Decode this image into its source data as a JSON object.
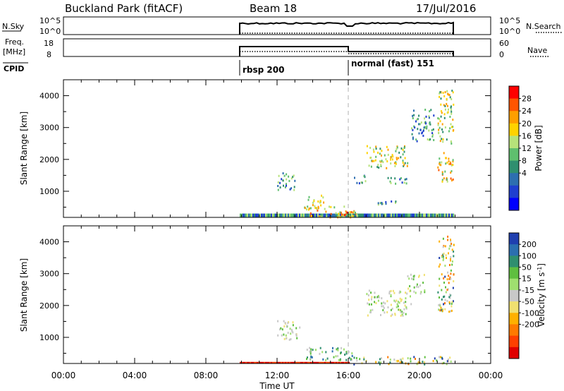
{
  "header": {
    "title": "Buckland Park (fitACF)",
    "beam": "Beam 18",
    "date": "17/Jul/2016"
  },
  "xaxis": {
    "label": "Time UT",
    "tick_labels": [
      "00:00",
      "04:00",
      "08:00",
      "12:00",
      "16:00",
      "20:00",
      "00:00"
    ],
    "range_hours": [
      0,
      24
    ]
  },
  "strips": {
    "noise": {
      "left_label": "N.Sky",
      "right_label": "N.Search",
      "left_ticks": [
        "10^5",
        "10^0"
      ],
      "right_ticks": [
        "10^5",
        "10^0"
      ]
    },
    "freq": {
      "left_label_top": "Freq.",
      "left_label_unit": "[MHz]",
      "left_ticks": [
        "18",
        "8"
      ],
      "right_ticks": [
        "60",
        "0"
      ],
      "right_label": "Nave"
    },
    "cpid": {
      "label": "CPID",
      "segments": [
        {
          "label": "rbsp 200",
          "start_hour": 9.9
        },
        {
          "label": "normal (fast) 151",
          "start_hour": 16.0
        }
      ]
    }
  },
  "panels": {
    "power": {
      "ylabel": "Slant Range [km]",
      "ylim": [
        180,
        4500
      ],
      "yticks": [
        "1000",
        "2000",
        "3000",
        "4000"
      ],
      "colorbar": {
        "label": "Power [dB]",
        "ticks": [
          "28",
          "24",
          "20",
          "16",
          "12",
          "8",
          "4"
        ],
        "colors": [
          "#ff0000",
          "#ff5500",
          "#ff9e00",
          "#ffd200",
          "#b6e27a",
          "#5fbf6e",
          "#2f8f6f",
          "#2d6fb0",
          "#1f3fd0",
          "#0000ff"
        ]
      }
    },
    "velocity": {
      "ylabel": "Slant Range [km]",
      "ylim": [
        180,
        4500
      ],
      "yticks": [
        "1000",
        "2000",
        "3000",
        "4000"
      ],
      "colorbar": {
        "label": "Velocity [m s",
        "label_exponent": "-1",
        "label_close": "]",
        "ticks": [
          "200",
          "100",
          "50",
          "15",
          "-15",
          "-50",
          "-100",
          "-200"
        ],
        "colors": [
          "#1f3faf",
          "#2b6fb0",
          "#2f8f6f",
          "#5fbf3f",
          "#9fdf6f",
          "#c8c8c8",
          "#f0e070",
          "#ffb000",
          "#ff7a00",
          "#ff4000",
          "#e00000"
        ]
      }
    }
  },
  "chart_data": {
    "type": "heatmap",
    "title": "Buckland Park (fitACF)",
    "xlabel": "Time UT",
    "ylabel": "Slant Range [km]",
    "x_range_hours": [
      0,
      24
    ],
    "ylim": [
      180,
      4500
    ],
    "data_window_hours": [
      9.9,
      21.9
    ],
    "power_clusters": [
      {
        "t": [
          9.9,
          21.9
        ],
        "r": [
          180,
          300
        ],
        "level": "low",
        "note_band": true
      },
      {
        "t": [
          13.5,
          16.5
        ],
        "r": [
          180,
          560
        ],
        "level": "high"
      },
      {
        "t": [
          15.6,
          16.3
        ],
        "r": [
          180,
          380
        ],
        "level": "peak"
      },
      {
        "t": [
          12.0,
          13.0
        ],
        "r": [
          1050,
          1650
        ],
        "level": "low"
      },
      {
        "t": [
          13.7,
          14.6
        ],
        "r": [
          520,
          900
        ],
        "level": "mid"
      },
      {
        "t": [
          16.3,
          17.0
        ],
        "r": [
          1250,
          1550
        ],
        "level": "low"
      },
      {
        "t": [
          17.0,
          19.3
        ],
        "r": [
          1750,
          2450
        ],
        "level": "mid"
      },
      {
        "t": [
          18.2,
          19.6
        ],
        "r": [
          1250,
          1450
        ],
        "level": "low"
      },
      {
        "t": [
          17.6,
          18.8
        ],
        "r": [
          550,
          750
        ],
        "level": "low"
      },
      {
        "t": [
          19.5,
          20.8
        ],
        "r": [
          2600,
          3600
        ],
        "level": "low"
      },
      {
        "t": [
          21.0,
          21.9
        ],
        "r": [
          1300,
          2300
        ],
        "level": "high"
      },
      {
        "t": [
          21.0,
          21.9
        ],
        "r": [
          2500,
          4200
        ],
        "level": "mid"
      }
    ],
    "velocity_clusters": [
      {
        "t": [
          9.9,
          16.0
        ],
        "r": [
          180,
          230
        ],
        "level": "neg_high",
        "note_band": true
      },
      {
        "t": [
          12.0,
          13.3
        ],
        "r": [
          950,
          1550
        ],
        "level": "zero"
      },
      {
        "t": [
          13.5,
          16.2
        ],
        "r": [
          300,
          700
        ],
        "level": "pos_mid"
      },
      {
        "t": [
          16.0,
          21.9
        ],
        "r": [
          180,
          420
        ],
        "level": "mixed"
      },
      {
        "t": [
          17.0,
          19.5
        ],
        "r": [
          1700,
          2500
        ],
        "level": "zero"
      },
      {
        "t": [
          19.3,
          20.3
        ],
        "r": [
          2400,
          3000
        ],
        "level": "zero"
      },
      {
        "t": [
          21.0,
          21.9
        ],
        "r": [
          1800,
          4200
        ],
        "level": "mixed"
      }
    ]
  }
}
